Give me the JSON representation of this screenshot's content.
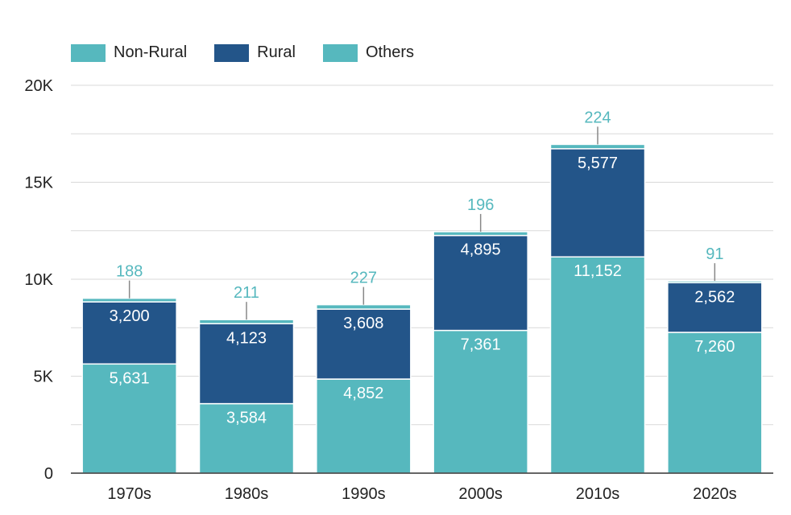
{
  "chart_data": {
    "type": "bar",
    "stacked": true,
    "categories": [
      "1970s",
      "1980s",
      "1990s",
      "2000s",
      "2010s",
      "2020s"
    ],
    "series": [
      {
        "name": "Non-Rural",
        "color": "#56B8BE",
        "values": [
          5631,
          3584,
          4852,
          7361,
          11152,
          7260
        ]
      },
      {
        "name": "Rural",
        "color": "#235589",
        "values": [
          3200,
          4123,
          3608,
          4895,
          5577,
          2562
        ]
      },
      {
        "name": "Others",
        "color": "#56B8BE",
        "values": [
          188,
          211,
          227,
          196,
          224,
          91
        ]
      }
    ],
    "data_labels": {
      "Non-Rural": [
        "5,631",
        "3,584",
        "4,852",
        "7,361",
        "11,152",
        "7,260"
      ],
      "Rural": [
        "3,200",
        "4,123",
        "3,608",
        "4,895",
        "5,577",
        "2,562"
      ],
      "Others": [
        "188",
        "211",
        "227",
        "196",
        "224",
        "91"
      ]
    },
    "ylim": [
      0,
      20000
    ],
    "yticks": [
      0,
      5000,
      10000,
      15000,
      20000
    ],
    "ytick_labels": [
      "0",
      "5K",
      "10K",
      "15K",
      "20K"
    ],
    "grid": true,
    "legend_position": "top-left",
    "title": "",
    "xlabel": "",
    "ylabel": ""
  },
  "colors": {
    "non_rural": "#56B8BE",
    "rural": "#235589",
    "others": "#56B8BE",
    "others_label": "#56B8BE",
    "grid": "#d9d9d9",
    "axis": "#333333"
  }
}
